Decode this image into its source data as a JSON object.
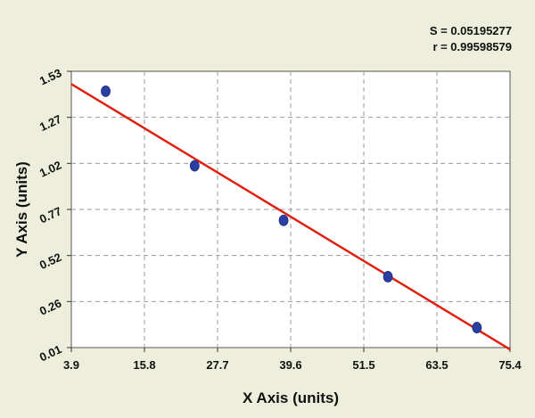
{
  "chart_data": {
    "type": "scatter",
    "xlabel": "X Axis (units)",
    "ylabel": "Y Axis (units)",
    "xlim": [
      3.9,
      75.4
    ],
    "ylim": [
      0.01,
      1.53
    ],
    "x_ticks": [
      "3.9",
      "15.8",
      "27.7",
      "39.6",
      "51.5",
      "63.5",
      "75.4"
    ],
    "y_ticks": [
      "0.01",
      "0.26",
      "0.52",
      "0.77",
      "1.02",
      "1.27",
      "1.53"
    ],
    "grid": true,
    "stats": {
      "s_label": "S = 0.05195277",
      "r_label": "r = 0.99598579"
    },
    "series": [
      {
        "points": [
          {
            "x": 9.5,
            "y": 1.42
          },
          {
            "x": 24.0,
            "y": 1.01
          },
          {
            "x": 38.5,
            "y": 0.71
          },
          {
            "x": 55.5,
            "y": 0.4
          },
          {
            "x": 70.0,
            "y": 0.12
          }
        ],
        "color": "#2b3fa0"
      }
    ],
    "fit_line": {
      "start": {
        "x": 3.9,
        "y": 1.46
      },
      "end": {
        "x": 75.4,
        "y": 0.0
      },
      "color": "#e02010"
    }
  }
}
